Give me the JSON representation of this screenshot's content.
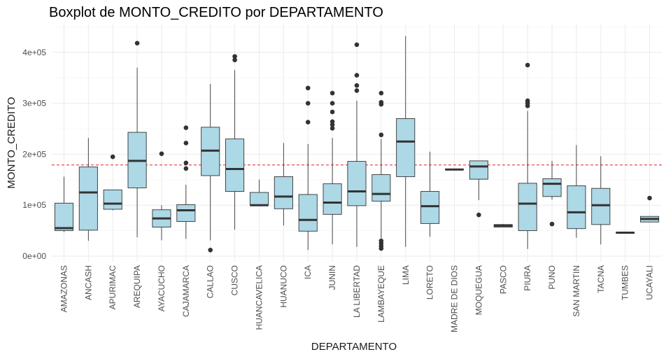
{
  "chart_data": {
    "type": "boxplot",
    "title": "Boxplot de MONTO_CREDITO por DEPARTAMENTO",
    "xlabel": "DEPARTAMENTO",
    "ylabel": "MONTO_CREDITO",
    "ylim": [
      0,
      445000
    ],
    "y_ticks": [
      0,
      100000,
      200000,
      300000,
      400000
    ],
    "y_tick_labels": [
      "0e+00",
      "1e+05",
      "2e+05",
      "3e+05",
      "4e+05"
    ],
    "grid": true,
    "reference_line": {
      "value": 179000,
      "style": "dashed",
      "color": "#e2202a"
    },
    "box_fill": "#add8e6",
    "box_stroke": "#333333",
    "categories": [
      "AMAZONAS",
      "ANCASH",
      "APURIMAC",
      "AREQUIPA",
      "AYACUCHO",
      "CAJAMARCA",
      "CALLAO",
      "CUSCO",
      "HUANCAVELICA",
      "HUANUCO",
      "ICA",
      "JUNIN",
      "LA LIBERTAD",
      "LAMBAYEQUE",
      "LIMA",
      "LORETO",
      "MADRE DE DIOS",
      "MOQUEGUA",
      "PASCO",
      "PIURA",
      "PUNO",
      "SAN MARTIN",
      "TACNA",
      "TUMBES",
      "UCAYALI"
    ],
    "boxes": [
      {
        "min": 47000,
        "q1": 50000,
        "median": 55000,
        "q3": 104000,
        "max": 156000,
        "outliers": []
      },
      {
        "min": 30000,
        "q1": 51000,
        "median": 125000,
        "q3": 175000,
        "max": 232000,
        "outliers": []
      },
      {
        "min": 90000,
        "q1": 92000,
        "median": 103000,
        "q3": 130000,
        "max": 130000,
        "outliers": [
          195000
        ]
      },
      {
        "min": 37000,
        "q1": 134000,
        "median": 187000,
        "q3": 243000,
        "max": 370000,
        "outliers": [
          418000
        ]
      },
      {
        "min": 31000,
        "q1": 57000,
        "median": 74000,
        "q3": 91000,
        "max": 100000,
        "outliers": [
          201000
        ]
      },
      {
        "min": 34000,
        "q1": 68000,
        "median": 90000,
        "q3": 101000,
        "max": 140000,
        "outliers": [
          172000,
          183000,
          222000,
          252000
        ]
      },
      {
        "min": 31000,
        "q1": 158000,
        "median": 207000,
        "q3": 253000,
        "max": 338000,
        "outliers": [
          12000
        ]
      },
      {
        "min": 52000,
        "q1": 127000,
        "median": 171000,
        "q3": 230000,
        "max": 365000,
        "outliers": [
          385000,
          392000
        ]
      },
      {
        "min": 100000,
        "q1": 100000,
        "median": 100000,
        "q3": 125000,
        "max": 150000,
        "outliers": []
      },
      {
        "min": 60000,
        "q1": 93000,
        "median": 117000,
        "q3": 156000,
        "max": 222000,
        "outliers": []
      },
      {
        "min": 12000,
        "q1": 49000,
        "median": 71000,
        "q3": 121000,
        "max": 220000,
        "outliers": [
          263000,
          300000,
          330000
        ]
      },
      {
        "min": 23000,
        "q1": 82000,
        "median": 105000,
        "q3": 142000,
        "max": 232000,
        "outliers": [
          251000,
          258000,
          264000,
          283000,
          300000,
          320000
        ]
      },
      {
        "min": 18000,
        "q1": 99000,
        "median": 127000,
        "q3": 186000,
        "max": 305000,
        "outliers": [
          325000,
          335000,
          355000,
          415000
        ]
      },
      {
        "min": 35000,
        "q1": 108000,
        "median": 122000,
        "q3": 160000,
        "max": 230000,
        "outliers": [
          15000,
          20000,
          25000,
          30000,
          238000,
          298000,
          302000,
          320000
        ]
      },
      {
        "min": 18000,
        "q1": 156000,
        "median": 225000,
        "q3": 270000,
        "max": 432000,
        "outliers": []
      },
      {
        "min": 38000,
        "q1": 64000,
        "median": 98000,
        "q3": 127000,
        "max": 205000,
        "outliers": []
      },
      {
        "min": 170000,
        "q1": 170000,
        "median": 170000,
        "q3": 171000,
        "max": 171000,
        "outliers": []
      },
      {
        "min": 110000,
        "q1": 151000,
        "median": 176000,
        "q3": 187000,
        "max": 187000,
        "outliers": [
          81000
        ]
      },
      {
        "min": 57000,
        "q1": 57000,
        "median": 60000,
        "q3": 62000,
        "max": 63000,
        "outliers": []
      },
      {
        "min": 14000,
        "q1": 50000,
        "median": 103000,
        "q3": 143000,
        "max": 285000,
        "outliers": [
          295000,
          300000,
          305000,
          375000
        ]
      },
      {
        "min": 111000,
        "q1": 117000,
        "median": 142000,
        "q3": 152000,
        "max": 187000,
        "outliers": [
          63000
        ]
      },
      {
        "min": 36000,
        "q1": 54000,
        "median": 86000,
        "q3": 138000,
        "max": 218000,
        "outliers": []
      },
      {
        "min": 23000,
        "q1": 62000,
        "median": 100000,
        "q3": 133000,
        "max": 196000,
        "outliers": []
      },
      {
        "min": 45000,
        "q1": 45000,
        "median": 46000,
        "q3": 46000,
        "max": 47000,
        "outliers": []
      },
      {
        "min": 66000,
        "q1": 67000,
        "median": 73000,
        "q3": 78000,
        "max": 78000,
        "outliers": [
          114000
        ]
      }
    ]
  }
}
